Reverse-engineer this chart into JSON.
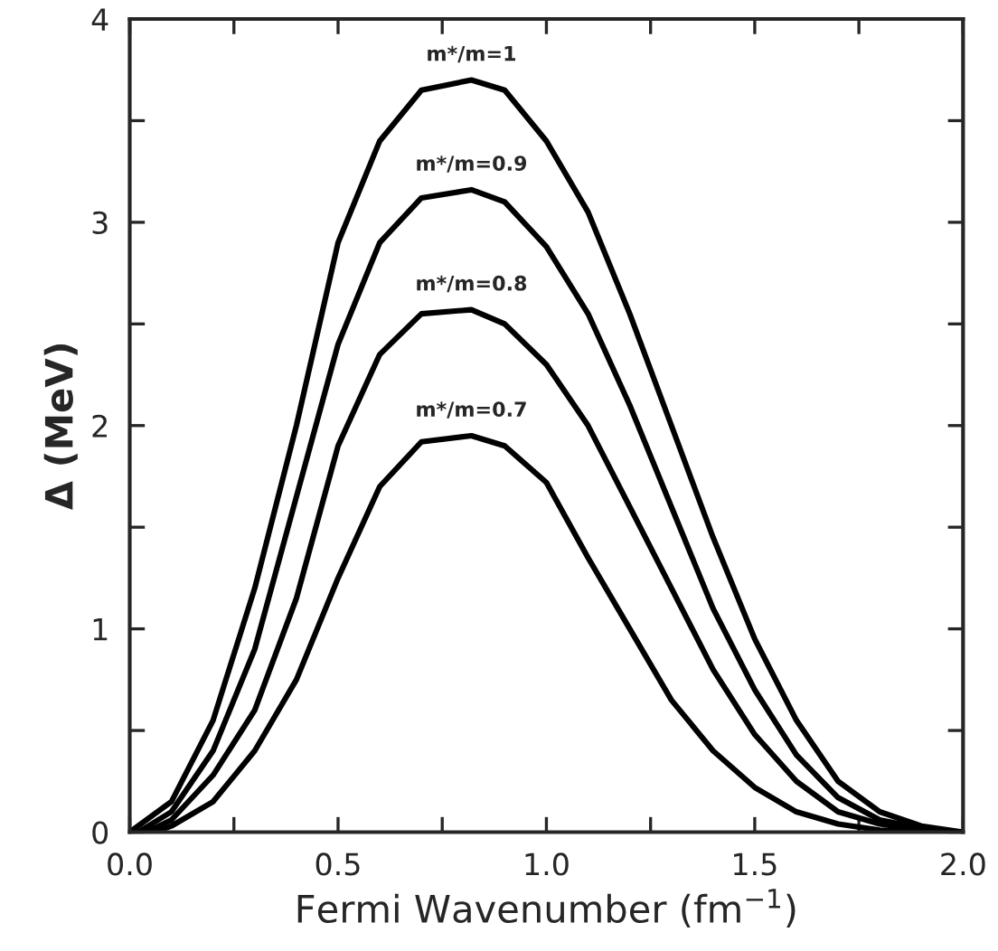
{
  "chart_data": {
    "type": "line",
    "xlabel": "Fermi Wavenumber (fm$^{−1}$)",
    "ylabel": "Δ (MeV)",
    "x": [
      0,
      0.1,
      0.2,
      0.3,
      0.4,
      0.5,
      0.6,
      0.7,
      0.82,
      0.9,
      1.0,
      1.1,
      1.2,
      1.3,
      1.4,
      1.5,
      1.6,
      1.7,
      1.8,
      1.9,
      2.0
    ],
    "series": [
      {
        "name": "m*/m=1",
        "color": "#000000",
        "values": [
          0,
          0.15,
          0.55,
          1.2,
          2.0,
          2.9,
          3.4,
          3.65,
          3.7,
          3.65,
          3.4,
          3.05,
          2.55,
          2.0,
          1.45,
          0.95,
          0.55,
          0.25,
          0.1,
          0.03,
          0
        ]
      },
      {
        "name": "m*/m=0.9",
        "color": "#000000",
        "x": [
          0.02,
          0.1,
          0.2,
          0.3,
          0.4,
          0.5,
          0.6,
          0.7,
          0.82,
          0.9,
          1.0,
          1.1,
          1.2,
          1.3,
          1.4,
          1.5,
          1.6,
          1.7,
          1.8,
          1.9,
          1.98
        ],
        "values": [
          0,
          0.1,
          0.4,
          0.9,
          1.65,
          2.4,
          2.9,
          3.12,
          3.16,
          3.1,
          2.88,
          2.55,
          2.1,
          1.6,
          1.1,
          0.7,
          0.38,
          0.17,
          0.06,
          0.02,
          0
        ]
      },
      {
        "name": "m*/m=0.8",
        "color": "#000000",
        "x": [
          0.04,
          0.1,
          0.2,
          0.3,
          0.4,
          0.5,
          0.6,
          0.7,
          0.82,
          0.9,
          1.0,
          1.1,
          1.2,
          1.3,
          1.4,
          1.5,
          1.6,
          1.7,
          1.8,
          1.9,
          1.95
        ],
        "values": [
          0,
          0.06,
          0.28,
          0.6,
          1.15,
          1.9,
          2.35,
          2.55,
          2.57,
          2.5,
          2.3,
          2.0,
          1.6,
          1.2,
          0.8,
          0.48,
          0.25,
          0.1,
          0.04,
          0.01,
          0
        ]
      },
      {
        "name": "m*/m=0.7",
        "color": "#000000",
        "x": [
          0.06,
          0.1,
          0.2,
          0.3,
          0.4,
          0.5,
          0.6,
          0.7,
          0.82,
          0.9,
          1.0,
          1.1,
          1.2,
          1.3,
          1.4,
          1.5,
          1.6,
          1.7,
          1.8,
          1.9
        ],
        "values": [
          0,
          0.03,
          0.15,
          0.4,
          0.75,
          1.25,
          1.7,
          1.92,
          1.95,
          1.9,
          1.72,
          1.35,
          1.0,
          0.65,
          0.4,
          0.22,
          0.1,
          0.04,
          0.01,
          0
        ]
      }
    ],
    "xlim": [
      0,
      2
    ],
    "ylim": [
      0,
      4
    ],
    "xticks": [
      {
        "value": 0,
        "label": "0.0"
      },
      {
        "value": 0.25,
        "label": null
      },
      {
        "value": 0.5,
        "label": "0.5"
      },
      {
        "value": 0.75,
        "label": null
      },
      {
        "value": 1.0,
        "label": "1.0"
      },
      {
        "value": 1.25,
        "label": null
      },
      {
        "value": 1.5,
        "label": "1.5"
      },
      {
        "value": 1.75,
        "label": null
      },
      {
        "value": 2.0,
        "label": "2.0"
      }
    ],
    "yticks": [
      0,
      {
        "value": 0.5,
        "label": null
      },
      1,
      {
        "value": 1.5,
        "label": null
      },
      2,
      {
        "value": 2.5,
        "label": null
      },
      3,
      {
        "value": 3.5,
        "label": null
      },
      4
    ],
    "grid": false,
    "legend": false,
    "marker": "none",
    "line_style": "solid"
  }
}
